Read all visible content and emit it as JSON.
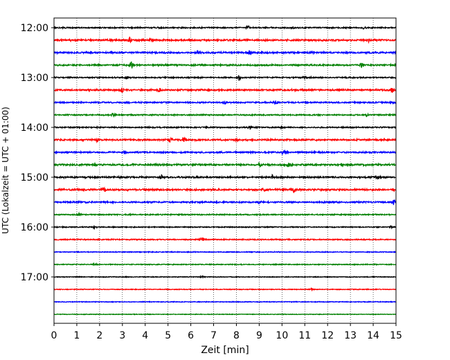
{
  "chart_data": {
    "type": "line",
    "xlabel": "Zeit  [min]",
    "ylabel": "UTC (Lokalzeit = UTC + 01:00)",
    "xlim": [
      0,
      15
    ],
    "x_ticks": [
      "0",
      "1",
      "2",
      "3",
      "4",
      "5",
      "6",
      "7",
      "8",
      "9",
      "10",
      "11",
      "12",
      "13",
      "14",
      "15"
    ],
    "y_ticks": [
      {
        "label": "12:00",
        "row": 0
      },
      {
        "label": "13:00",
        "row": 4
      },
      {
        "label": "14:00",
        "row": 8
      },
      {
        "label": "15:00",
        "row": 12
      },
      {
        "label": "16:00",
        "row": 16
      },
      {
        "label": "17:00",
        "row": 20
      }
    ],
    "grid": "vertical-dotted",
    "color_cycle": [
      "#000000",
      "#ff0000",
      "#0000ff",
      "#008000"
    ],
    "row_minutes": 15,
    "start_time": "12:00",
    "series": [
      {
        "start": "12:00",
        "color": "#000000",
        "amp": 1.0,
        "events": [
          [
            8.5,
            3.0
          ],
          [
            10.5,
            2.0
          ],
          [
            13.6,
            2.5
          ]
        ]
      },
      {
        "start": "12:15",
        "color": "#ff0000",
        "amp": 1.4,
        "events": [
          [
            3.3,
            4.0
          ],
          [
            4.3,
            3.0
          ],
          [
            13.8,
            2.0
          ]
        ]
      },
      {
        "start": "12:30",
        "color": "#0000ff",
        "amp": 1.3,
        "events": [
          [
            6.3,
            2.0
          ],
          [
            8.6,
            3.0
          ],
          [
            11.3,
            2.0
          ]
        ]
      },
      {
        "start": "12:45",
        "color": "#008000",
        "amp": 1.2,
        "events": [
          [
            3.4,
            6.0
          ],
          [
            13.5,
            3.0
          ]
        ]
      },
      {
        "start": "13:00",
        "color": "#000000",
        "amp": 1.0,
        "events": [
          [
            3.2,
            2.0
          ],
          [
            8.1,
            4.0
          ],
          [
            11.0,
            2.0
          ]
        ]
      },
      {
        "start": "13:15",
        "color": "#ff0000",
        "amp": 1.3,
        "events": [
          [
            3.0,
            3.5
          ],
          [
            4.6,
            3.0
          ],
          [
            14.8,
            3.5
          ]
        ]
      },
      {
        "start": "13:30",
        "color": "#0000ff",
        "amp": 1.1,
        "events": [
          [
            7.5,
            2.5
          ],
          [
            9.7,
            3.0
          ]
        ]
      },
      {
        "start": "13:45",
        "color": "#008000",
        "amp": 1.0,
        "events": [
          [
            2.6,
            2.5
          ],
          [
            13.7,
            2.0
          ]
        ]
      },
      {
        "start": "14:00",
        "color": "#000000",
        "amp": 1.0,
        "events": [
          [
            8.6,
            3.0
          ],
          [
            10.0,
            2.0
          ]
        ]
      },
      {
        "start": "14:15",
        "color": "#ff0000",
        "amp": 1.3,
        "events": [
          [
            1.9,
            2.5
          ],
          [
            5.1,
            3.5
          ],
          [
            5.7,
            4.0
          ],
          [
            8.0,
            2.0
          ]
        ]
      },
      {
        "start": "14:30",
        "color": "#0000ff",
        "amp": 1.2,
        "events": [
          [
            3.1,
            3.0
          ],
          [
            10.1,
            3.5
          ]
        ]
      },
      {
        "start": "14:45",
        "color": "#008000",
        "amp": 1.4,
        "events": [
          [
            1.8,
            2.0
          ],
          [
            9.0,
            3.0
          ],
          [
            10.3,
            3.5
          ]
        ]
      },
      {
        "start": "15:00",
        "color": "#000000",
        "amp": 1.3,
        "events": [
          [
            4.7,
            3.0
          ],
          [
            9.6,
            3.5
          ],
          [
            14.2,
            3.0
          ]
        ]
      },
      {
        "start": "15:15",
        "color": "#ff0000",
        "amp": 1.4,
        "events": [
          [
            2.2,
            2.5
          ],
          [
            9.2,
            2.5
          ],
          [
            10.5,
            3.5
          ],
          [
            14.9,
            2.5
          ]
        ]
      },
      {
        "start": "15:30",
        "color": "#0000ff",
        "amp": 1.2,
        "events": [
          [
            9.0,
            3.0
          ],
          [
            14.9,
            4.5
          ]
        ]
      },
      {
        "start": "15:45",
        "color": "#008000",
        "amp": 0.9,
        "events": [
          [
            1.1,
            2.0
          ]
        ]
      },
      {
        "start": "16:00",
        "color": "#000000",
        "amp": 0.8,
        "events": [
          [
            1.8,
            2.5
          ],
          [
            14.8,
            2.0
          ]
        ]
      },
      {
        "start": "16:15",
        "color": "#ff0000",
        "amp": 0.9,
        "events": [
          [
            6.5,
            3.0
          ]
        ]
      },
      {
        "start": "16:30",
        "color": "#0000ff",
        "amp": 0.7,
        "events": []
      },
      {
        "start": "16:45",
        "color": "#008000",
        "amp": 0.7,
        "events": [
          [
            1.8,
            1.5
          ]
        ]
      },
      {
        "start": "17:00",
        "color": "#000000",
        "amp": 0.6,
        "events": [
          [
            6.5,
            1.5
          ]
        ]
      },
      {
        "start": "17:15",
        "color": "#ff0000",
        "amp": 0.6,
        "events": [
          [
            11.3,
            1.5
          ]
        ]
      },
      {
        "start": "17:30",
        "color": "#0000ff",
        "amp": 0.6,
        "events": []
      },
      {
        "start": "17:45",
        "color": "#008000",
        "amp": 0.5,
        "events": []
      }
    ]
  }
}
